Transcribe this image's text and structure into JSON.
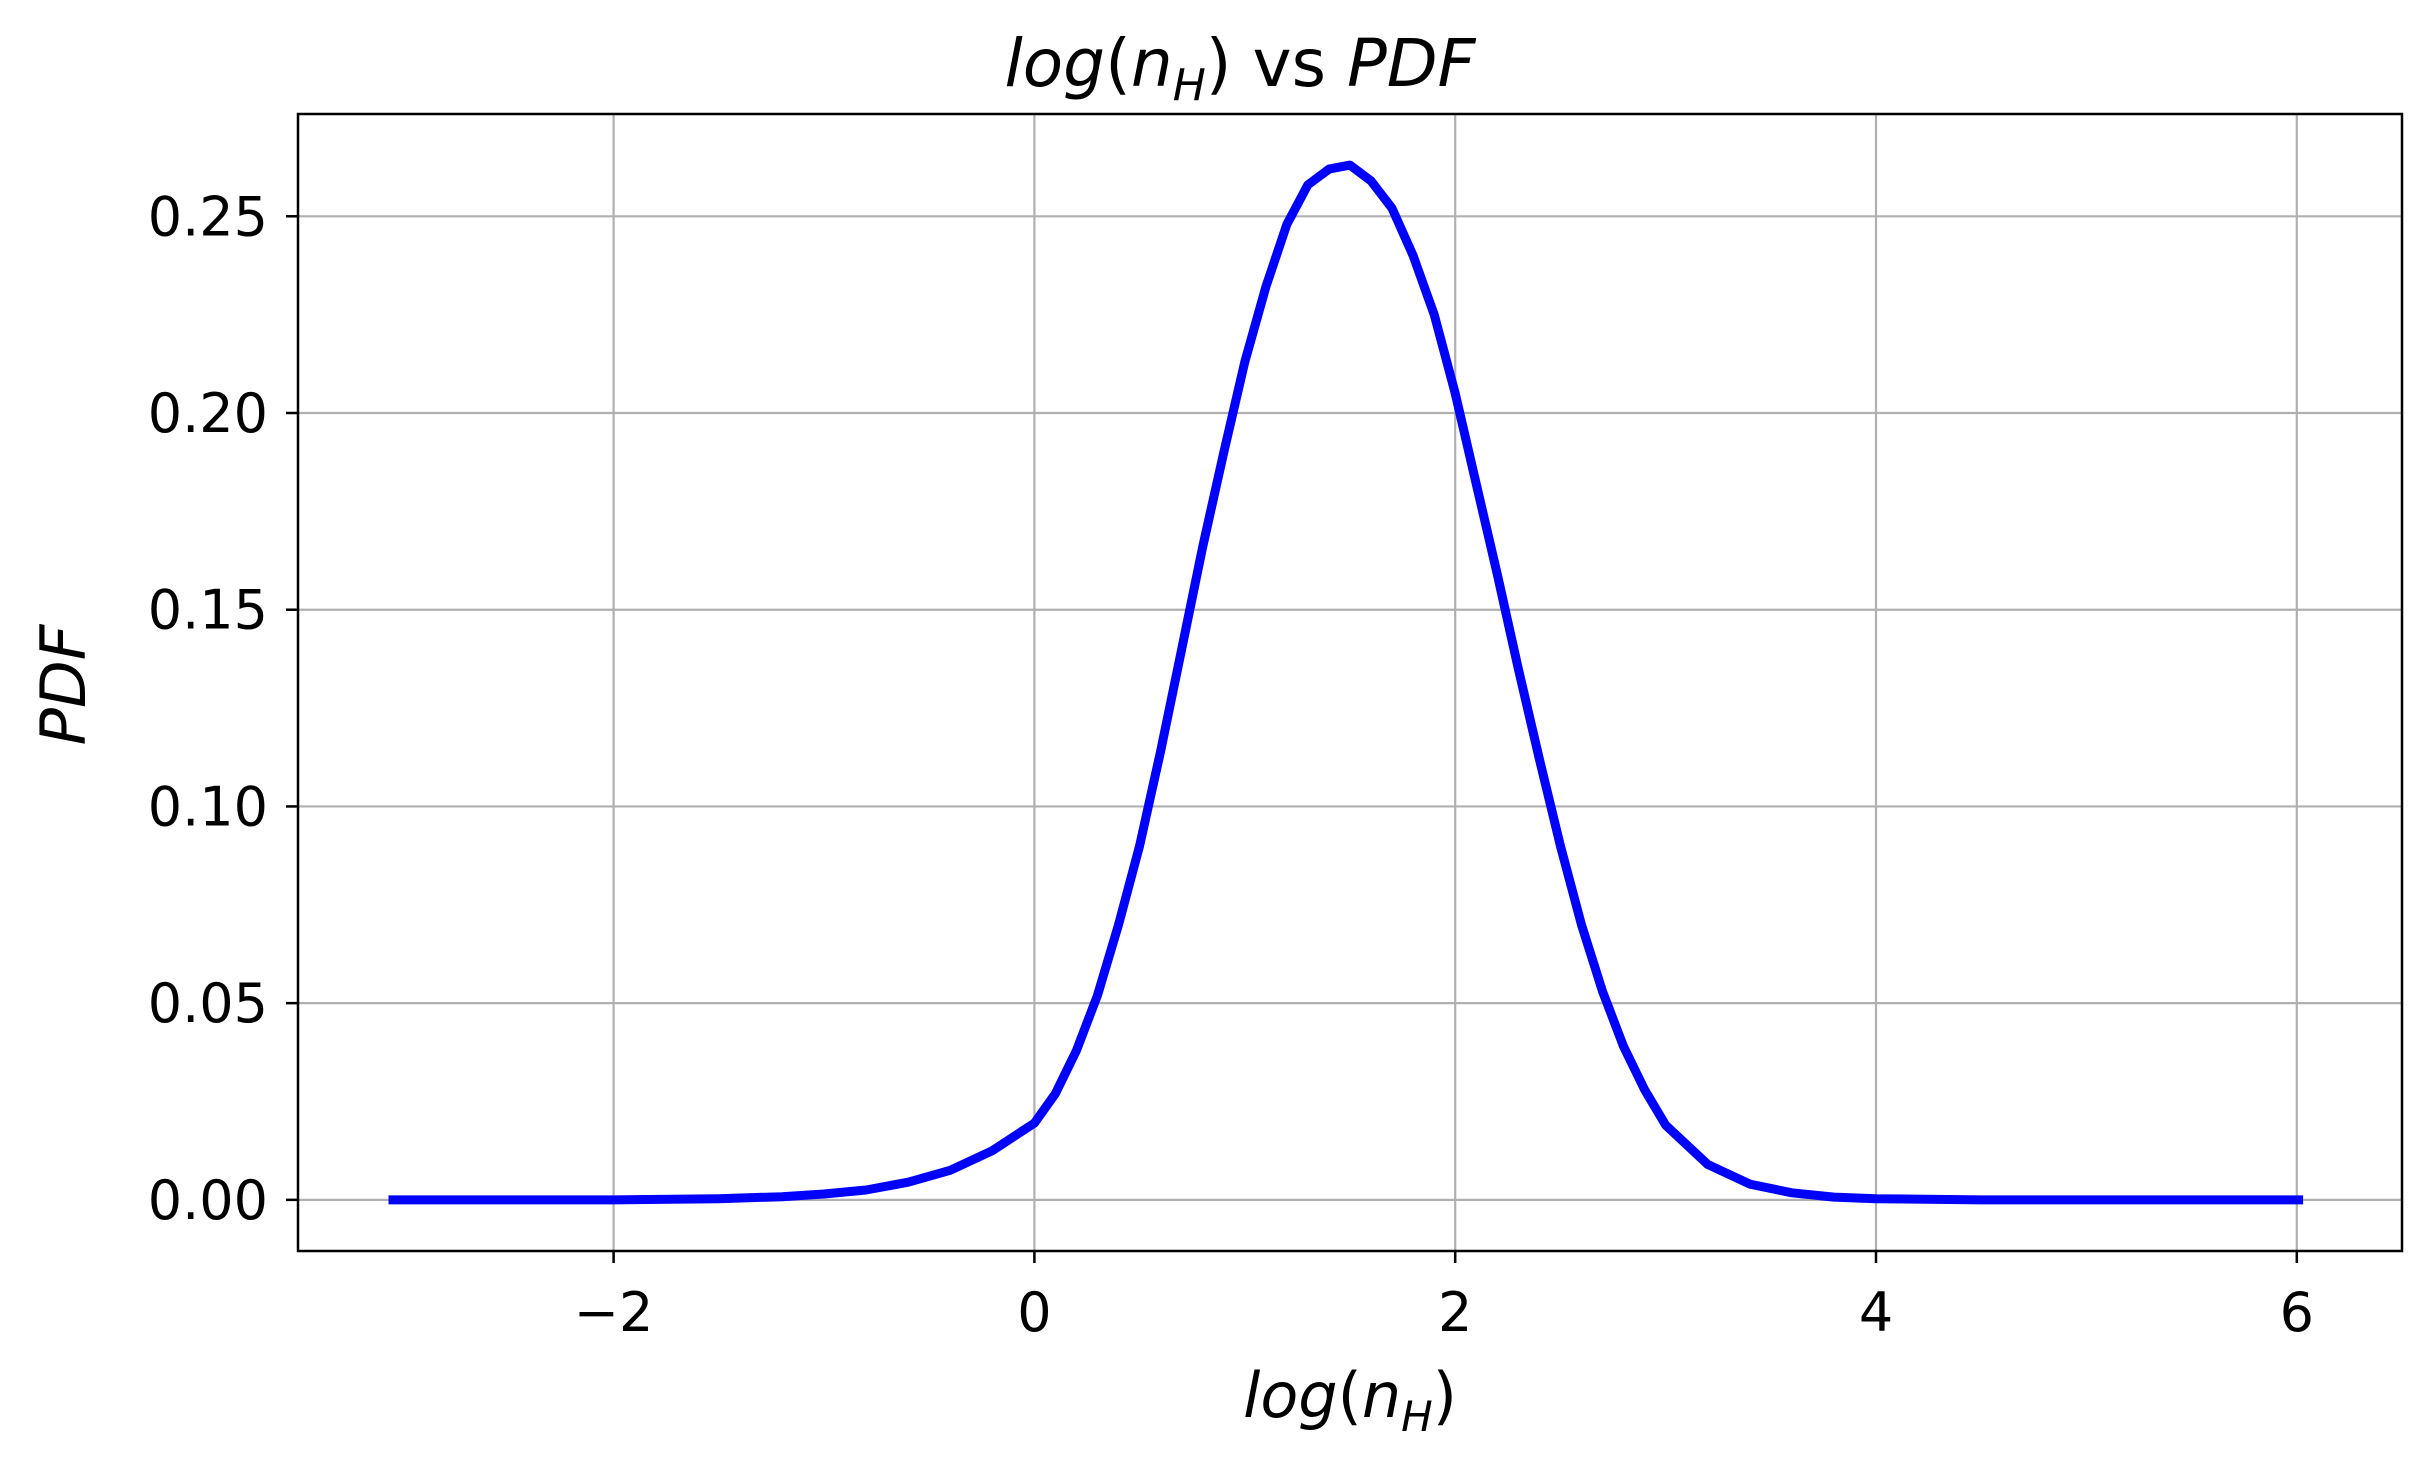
{
  "chart_data": {
    "type": "line",
    "title": {
      "part1": "log",
      "part2": "(",
      "part3": "n",
      "part4": "H",
      "part5": ") vs ",
      "part6": "PDF"
    },
    "xlabel": {
      "part1": "log",
      "part2": "(",
      "part3": "n",
      "part4": "H",
      "part5": ")"
    },
    "ylabel": "PDF",
    "xlim": [
      -3.5,
      6.5
    ],
    "ylim": [
      -0.013,
      0.276
    ],
    "xticks": [
      -2,
      0,
      2,
      4,
      6
    ],
    "xtick_labels": [
      "−2",
      "0",
      "2",
      "4",
      "6"
    ],
    "yticks": [
      0.0,
      0.05,
      0.1,
      0.15,
      0.2,
      0.25
    ],
    "ytick_labels": [
      "0.00",
      "0.05",
      "0.10",
      "0.15",
      "0.20",
      "0.25"
    ],
    "grid": true,
    "series": [
      {
        "color": "#0000ff",
        "x": [
          -3.07,
          -2.5,
          -2.0,
          -1.5,
          -1.2,
          -1.0,
          -0.8,
          -0.6,
          -0.4,
          -0.2,
          0.0,
          0.1,
          0.2,
          0.3,
          0.4,
          0.5,
          0.6,
          0.7,
          0.8,
          0.9,
          1.0,
          1.1,
          1.2,
          1.3,
          1.4,
          1.5,
          1.6,
          1.7,
          1.8,
          1.9,
          2.0,
          2.1,
          2.2,
          2.3,
          2.4,
          2.5,
          2.6,
          2.7,
          2.8,
          2.9,
          3.0,
          3.2,
          3.4,
          3.6,
          3.8,
          4.0,
          4.5,
          5.0,
          5.5,
          6.03
        ],
        "y": [
          0.0,
          0.0,
          0.0,
          0.0003,
          0.0008,
          0.0015,
          0.0025,
          0.0045,
          0.0075,
          0.0125,
          0.0195,
          0.027,
          0.038,
          0.052,
          0.07,
          0.09,
          0.114,
          0.14,
          0.166,
          0.19,
          0.213,
          0.232,
          0.248,
          0.258,
          0.262,
          0.263,
          0.259,
          0.252,
          0.24,
          0.225,
          0.205,
          0.182,
          0.159,
          0.135,
          0.112,
          0.09,
          0.07,
          0.053,
          0.039,
          0.028,
          0.019,
          0.009,
          0.004,
          0.0018,
          0.0007,
          0.0003,
          0.0,
          0.0,
          0.0,
          0.0
        ]
      }
    ]
  }
}
